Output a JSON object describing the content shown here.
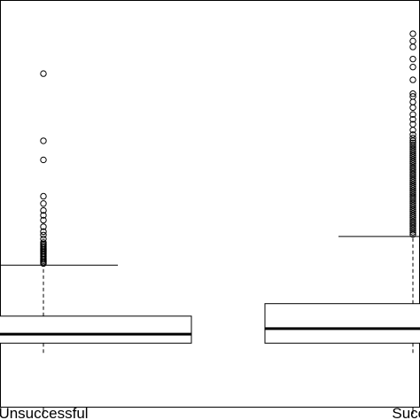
{
  "chart_data": {
    "type": "boxplot",
    "title": "",
    "xlabel": "",
    "ylabel": "",
    "categories": [
      "Unsuccessful",
      "Successful"
    ],
    "tick_labels_visible": [
      "Unsuccessful",
      "Succe"
    ],
    "ylim": [
      0,
      100
    ],
    "boxes": [
      {
        "name": "Unsuccessful",
        "lower_whisker": 0,
        "q1": 3.0,
        "median": 5.6,
        "q3": 10.8,
        "upper_whisker": 25.5,
        "outliers": [
          26.0,
          26.4,
          26.8,
          27.2,
          27.6,
          28.0,
          28.4,
          28.8,
          29.2,
          29.6,
          30.0,
          30.4,
          30.8,
          31.2,
          31.6,
          32.0,
          33.1,
          34.2,
          35.2,
          36.6,
          38.5,
          39.9,
          41.3,
          43.3,
          45.4,
          55.9,
          61.4,
          80.8
        ]
      },
      {
        "name": "Successful",
        "lower_whisker": 0,
        "q1": 3.0,
        "median": 7.2,
        "q3": 14.4,
        "upper_whisker": 33.8,
        "outliers": [
          34.4,
          35.0,
          35.6,
          36.2,
          36.8,
          37.4,
          38.0,
          38.6,
          39.2,
          39.8,
          40.4,
          41.0,
          41.6,
          42.2,
          42.8,
          43.4,
          44.0,
          44.6,
          45.2,
          45.8,
          46.4,
          47.0,
          47.6,
          48.2,
          48.8,
          49.4,
          50.0,
          50.6,
          51.2,
          51.8,
          52.4,
          53.0,
          53.6,
          54.2,
          54.8,
          55.4,
          56.0,
          56.6,
          57.2,
          57.8,
          58.4,
          59.0,
          59.6,
          60.2,
          60.8,
          61.4,
          62.2,
          63.2,
          64.5,
          66.2,
          67.6,
          69.0,
          71.0,
          72.6,
          74.2,
          75.0,
          79.0,
          82.7,
          85.0,
          88.5,
          90.2,
          92.3
        ]
      }
    ],
    "grid": false,
    "legend": "none"
  }
}
